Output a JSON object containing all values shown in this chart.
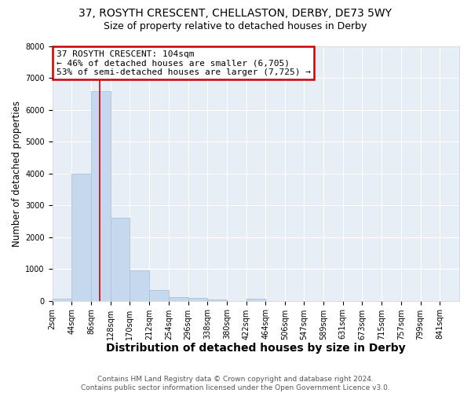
{
  "title1": "37, ROSYTH CRESCENT, CHELLASTON, DERBY, DE73 5WY",
  "title2": "Size of property relative to detached houses in Derby",
  "xlabel": "Distribution of detached houses by size in Derby",
  "ylabel": "Number of detached properties",
  "bar_color": "#c5d8ed",
  "bar_edge_color": "#a8c4dc",
  "bg_color": "#e8eef5",
  "grid_color": "#ffffff",
  "bin_edges": [
    2,
    44,
    86,
    128,
    170,
    212,
    254,
    296,
    338,
    380,
    422,
    464,
    506,
    547,
    589,
    631,
    673,
    715,
    757,
    799,
    841
  ],
  "bar_heights": [
    75,
    4000,
    6600,
    2600,
    950,
    330,
    120,
    100,
    50,
    0,
    70,
    0,
    0,
    0,
    0,
    0,
    0,
    0,
    0,
    0
  ],
  "property_size": 104,
  "red_line_color": "#cc0000",
  "annotation_line1": "37 ROSYTH CRESCENT: 104sqm",
  "annotation_line2": "← 46% of detached houses are smaller (6,705)",
  "annotation_line3": "53% of semi-detached houses are larger (7,725) →",
  "annotation_box_color": "#cc0000",
  "ylim": [
    0,
    8000
  ],
  "yticks": [
    0,
    1000,
    2000,
    3000,
    4000,
    5000,
    6000,
    7000,
    8000
  ],
  "xtick_labels": [
    "2sqm",
    "44sqm",
    "86sqm",
    "128sqm",
    "170sqm",
    "212sqm",
    "254sqm",
    "296sqm",
    "338sqm",
    "380sqm",
    "422sqm",
    "464sqm",
    "506sqm",
    "547sqm",
    "589sqm",
    "631sqm",
    "673sqm",
    "715sqm",
    "757sqm",
    "799sqm",
    "841sqm"
  ],
  "footer_text": "Contains HM Land Registry data © Crown copyright and database right 2024.\nContains public sector information licensed under the Open Government Licence v3.0.",
  "title1_fontsize": 10,
  "title2_fontsize": 9,
  "xlabel_fontsize": 10,
  "ylabel_fontsize": 8.5,
  "tick_fontsize": 7,
  "footer_fontsize": 6.5,
  "annotation_fontsize": 8
}
